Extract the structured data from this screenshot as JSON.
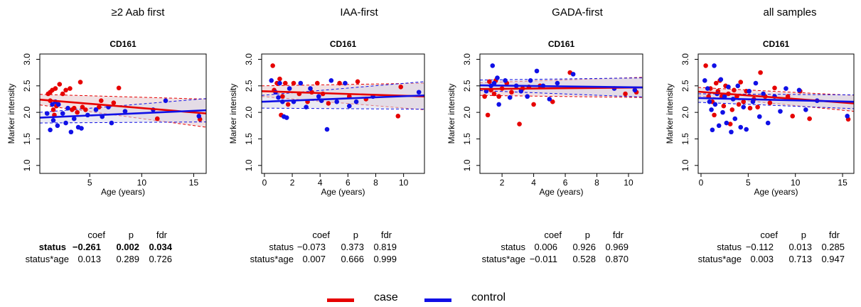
{
  "colors": {
    "case": "#e60000",
    "control": "#1010e6",
    "band_case": "#e8c8cc",
    "band_control": "#d8d8ea"
  },
  "legend": [
    {
      "label": "case",
      "color": "#e60000"
    },
    {
      "label": "control",
      "color": "#1010e6"
    }
  ],
  "stats_headers": {
    "coef": "coef",
    "p": "p",
    "fdr": "fdr"
  },
  "panels": [
    {
      "title": "≥2 Aab first",
      "stats": [
        {
          "term": "status",
          "coef": "−0.261",
          "p": "0.002",
          "fdr": "0.034",
          "bold": true
        },
        {
          "term": "status*age",
          "coef": "0.013",
          "p": "0.289",
          "fdr": "0.726",
          "bold": false
        }
      ]
    },
    {
      "title": "IAA-first",
      "stats": [
        {
          "term": "status",
          "coef": "−0.073",
          "p": "0.373",
          "fdr": "0.819",
          "bold": false
        },
        {
          "term": "status*age",
          "coef": "0.007",
          "p": "0.666",
          "fdr": "0.999",
          "bold": false
        }
      ]
    },
    {
      "title": "GADA-first",
      "stats": [
        {
          "term": "status",
          "coef": "0.006",
          "p": "0.926",
          "fdr": "0.969",
          "bold": false
        },
        {
          "term": "status*age",
          "coef": "−0.011",
          "p": "0.528",
          "fdr": "0.870",
          "bold": false
        }
      ]
    },
    {
      "title": "all samples",
      "stats": [
        {
          "term": "status",
          "coef": "−0.112",
          "p": "0.013",
          "fdr": "0.285",
          "bold": false
        },
        {
          "term": "status*age",
          "coef": "0.003",
          "p": "0.713",
          "fdr": "0.947",
          "bold": false
        }
      ]
    }
  ],
  "chart_data": [
    {
      "type": "scatter",
      "title": "CD161",
      "xlabel": "Age (years)",
      "ylabel": "Marker intensity",
      "xlim": [
        0.2,
        16.2
      ],
      "ylim": [
        0.85,
        3.1
      ],
      "xticks": [
        5,
        10,
        15
      ],
      "yticks": [
        1.0,
        1.5,
        2.0,
        2.5,
        3.0
      ],
      "yticklabels": [
        "1.0",
        "1.5",
        "2.0",
        "2.5",
        "3.0"
      ],
      "grid": false,
      "series": [
        {
          "name": "case",
          "points": [
            [
              1,
              2.35
            ],
            [
              1.2,
              2.38
            ],
            [
              1.4,
              2.42
            ],
            [
              1.2,
              2.22
            ],
            [
              1.5,
              2.05
            ],
            [
              1.6,
              1.95
            ],
            [
              1.7,
              2.45
            ],
            [
              1.8,
              2.12
            ],
            [
              2.1,
              2.53
            ],
            [
              2.4,
              2.35
            ],
            [
              2.7,
              2.42
            ],
            [
              3.1,
              2.45
            ],
            [
              3.3,
              2.05
            ],
            [
              3.5,
              2.08
            ],
            [
              3.8,
              2.0
            ],
            [
              4.1,
              2.57
            ],
            [
              4.3,
              2.1
            ],
            [
              4.6,
              2.05
            ],
            [
              5.9,
              2.1
            ],
            [
              6.1,
              2.22
            ],
            [
              7.3,
              2.18
            ],
            [
              7.8,
              2.46
            ],
            [
              11.5,
              1.88
            ],
            [
              15.6,
              1.87
            ]
          ],
          "fit": {
            "y_start": 2.24,
            "y_end": 1.98
          },
          "band": {
            "start": [
              2.14,
              2.34
            ],
            "end": [
              1.72,
              2.25
            ]
          }
        },
        {
          "name": "control",
          "points": [
            [
              0.9,
              1.98
            ],
            [
              1.2,
              1.67
            ],
            [
              1.4,
              2.15
            ],
            [
              1.5,
              1.85
            ],
            [
              1.7,
              2.2
            ],
            [
              1.9,
              1.75
            ],
            [
              2,
              2.15
            ],
            [
              2.4,
              1.98
            ],
            [
              2.7,
              1.8
            ],
            [
              2.9,
              2.08
            ],
            [
              3.2,
              1.63
            ],
            [
              3.5,
              1.88
            ],
            [
              3.9,
              1.72
            ],
            [
              4.2,
              1.7
            ],
            [
              4.8,
              1.95
            ],
            [
              5.6,
              2.05
            ],
            [
              6.2,
              1.92
            ],
            [
              6.8,
              2.1
            ],
            [
              7.1,
              1.8
            ],
            [
              8.4,
              2.02
            ],
            [
              11.1,
              2.05
            ],
            [
              12.3,
              2.22
            ],
            [
              15.5,
              1.93
            ]
          ],
          "fit": {
            "y_start": 1.9,
            "y_end": 2.04
          },
          "band": {
            "start": [
              1.8,
              2.0
            ],
            "end": [
              1.82,
              2.26
            ]
          }
        }
      ]
    },
    {
      "type": "scatter",
      "title": "CD161",
      "xlabel": "Age (years)",
      "ylabel": "Marker intensity",
      "xlim": [
        -0.2,
        11.5
      ],
      "ylim": [
        0.85,
        3.1
      ],
      "xticks": [
        0,
        2,
        4,
        6,
        8,
        10
      ],
      "yticks": [
        1.0,
        1.5,
        2.0,
        2.5,
        3.0
      ],
      "yticklabels": [
        "1.0",
        "1.5",
        "2.0",
        "2.5",
        "3.0"
      ],
      "grid": false,
      "series": [
        {
          "name": "case",
          "points": [
            [
              0.6,
              2.88
            ],
            [
              0.7,
              2.42
            ],
            [
              0.9,
              2.55
            ],
            [
              1.1,
              2.63
            ],
            [
              1.2,
              1.95
            ],
            [
              1.3,
              2.3
            ],
            [
              1.5,
              2.55
            ],
            [
              1.7,
              2.15
            ],
            [
              2.1,
              2.55
            ],
            [
              2.5,
              2.35
            ],
            [
              3.1,
              2.2
            ],
            [
              3.4,
              2.38
            ],
            [
              3.8,
              2.55
            ],
            [
              4.2,
              2.35
            ],
            [
              4.6,
              2.17
            ],
            [
              5.4,
              2.55
            ],
            [
              6.1,
              2.3
            ],
            [
              6.7,
              2.58
            ],
            [
              7.3,
              2.25
            ],
            [
              9.6,
              1.93
            ],
            [
              9.8,
              2.48
            ]
          ],
          "fit": {
            "y_start": 2.4,
            "y_end": 2.3
          },
          "band": {
            "start": [
              2.3,
              2.5
            ],
            "end": [
              2.05,
              2.55
            ]
          }
        },
        {
          "name": "control",
          "points": [
            [
              0.5,
              2.6
            ],
            [
              0.8,
              2.38
            ],
            [
              1.0,
              2.28
            ],
            [
              1.1,
              2.55
            ],
            [
              1.3,
              2.2
            ],
            [
              1.4,
              1.92
            ],
            [
              1.6,
              1.9
            ],
            [
              1.8,
              2.45
            ],
            [
              2.1,
              2.2
            ],
            [
              2.6,
              2.55
            ],
            [
              3,
              2.1
            ],
            [
              3.3,
              2.45
            ],
            [
              3.9,
              2.3
            ],
            [
              4.1,
              2.22
            ],
            [
              4.5,
              1.68
            ],
            [
              4.8,
              2.6
            ],
            [
              5.2,
              2.2
            ],
            [
              5.8,
              2.55
            ],
            [
              6.1,
              2.12
            ],
            [
              6.6,
              2.2
            ],
            [
              7.8,
              2.3
            ],
            [
              11.1,
              2.38
            ]
          ],
          "fit": {
            "y_start": 2.2,
            "y_end": 2.32
          },
          "band": {
            "start": [
              2.08,
              2.32
            ],
            "end": [
              2.06,
              2.58
            ]
          }
        }
      ]
    },
    {
      "type": "scatter",
      "title": "CD161",
      "xlabel": "Age (years)",
      "ylabel": "Marker intensity",
      "xlim": [
        0.6,
        10.9
      ],
      "ylim": [
        0.85,
        3.1
      ],
      "xticks": [
        2,
        4,
        6,
        8,
        10
      ],
      "yticks": [
        1.0,
        1.5,
        2.0,
        2.5,
        3.0
      ],
      "yticklabels": [
        "1.0",
        "1.5",
        "2.0",
        "2.5",
        "3.0"
      ],
      "grid": false,
      "series": [
        {
          "name": "case",
          "points": [
            [
              0.9,
              2.3
            ],
            [
              1.1,
              1.95
            ],
            [
              1.2,
              2.58
            ],
            [
              1.3,
              2.42
            ],
            [
              1.5,
              2.35
            ],
            [
              1.6,
              2.6
            ],
            [
              1.8,
              2.3
            ],
            [
              2,
              2.45
            ],
            [
              2.3,
              2.55
            ],
            [
              2.6,
              2.38
            ],
            [
              3.1,
              1.78
            ],
            [
              3.3,
              2.45
            ],
            [
              3.7,
              2.48
            ],
            [
              4,
              2.15
            ],
            [
              4.4,
              2.5
            ],
            [
              5.2,
              2.2
            ],
            [
              6.3,
              2.75
            ],
            [
              9.8,
              2.35
            ],
            [
              10.5,
              2.38
            ]
          ],
          "fit": {
            "y_start": 2.44,
            "y_end": 2.47
          },
          "band": {
            "start": [
              2.32,
              2.56
            ],
            "end": [
              2.28,
              2.66
            ]
          }
        },
        {
          "name": "control",
          "points": [
            [
              1,
              2.4
            ],
            [
              1.3,
              2.5
            ],
            [
              1.4,
              2.88
            ],
            [
              1.5,
              2.55
            ],
            [
              1.7,
              2.65
            ],
            [
              1.8,
              2.15
            ],
            [
              2.2,
              2.6
            ],
            [
              2.5,
              2.28
            ],
            [
              2.9,
              2.5
            ],
            [
              3.2,
              2.4
            ],
            [
              3.6,
              2.3
            ],
            [
              3.8,
              2.6
            ],
            [
              4.2,
              2.78
            ],
            [
              4.6,
              2.5
            ],
            [
              5,
              2.25
            ],
            [
              5.5,
              2.55
            ],
            [
              6.5,
              2.72
            ],
            [
              9.1,
              2.45
            ],
            [
              10.4,
              2.42
            ]
          ],
          "fit": {
            "y_start": 2.51,
            "y_end": 2.47
          },
          "band": {
            "start": [
              2.41,
              2.61
            ],
            "end": [
              2.29,
              2.65
            ]
          }
        }
      ]
    },
    {
      "type": "scatter",
      "title": "CD161",
      "xlabel": "Age (years)",
      "ylabel": "Marker intensity",
      "xlim": [
        -0.3,
        16.2
      ],
      "ylim": [
        0.85,
        3.1
      ],
      "xticks": [
        0,
        5,
        10,
        15
      ],
      "yticks": [
        1.0,
        1.5,
        2.0,
        2.5,
        3.0
      ],
      "yticklabels": [
        "1.0",
        "1.5",
        "2.0",
        "2.5",
        "3.0"
      ],
      "grid": false,
      "series": [
        {
          "name": "case",
          "points": [
            [
              0.5,
              2.88
            ],
            [
              0.8,
              2.3
            ],
            [
              1,
              2.45
            ],
            [
              1.2,
              2.2
            ],
            [
              1.4,
              1.95
            ],
            [
              1.6,
              2.55
            ],
            [
              1.8,
              2.4
            ],
            [
              2,
              2.6
            ],
            [
              2.2,
              2.3
            ],
            [
              2.4,
              2.12
            ],
            [
              2.6,
              2.5
            ],
            [
              2.9,
              2.35
            ],
            [
              3.1,
              1.78
            ],
            [
              3.3,
              2.05
            ],
            [
              3.5,
              2.42
            ],
            [
              3.8,
              2.3
            ],
            [
              4,
              2.15
            ],
            [
              4.2,
              2.57
            ],
            [
              4.5,
              2.2
            ],
            [
              4.8,
              2.4
            ],
            [
              5.2,
              2.08
            ],
            [
              5.6,
              2.25
            ],
            [
              6,
              2.1
            ],
            [
              6.3,
              2.75
            ],
            [
              6.8,
              2.3
            ],
            [
              7.3,
              2.18
            ],
            [
              7.8,
              2.46
            ],
            [
              9.2,
              2.3
            ],
            [
              9.7,
              1.93
            ],
            [
              10.5,
              2.4
            ],
            [
              11.5,
              1.88
            ],
            [
              15.6,
              1.87
            ]
          ],
          "fit": {
            "y_start": 2.39,
            "y_end": 2.17
          },
          "band": {
            "start": [
              2.31,
              2.47
            ],
            "end": [
              2.02,
              2.32
            ]
          }
        },
        {
          "name": "control",
          "points": [
            [
              0.4,
              2.6
            ],
            [
              0.7,
              2.45
            ],
            [
              0.9,
              2.2
            ],
            [
              1.1,
              2.05
            ],
            [
              1.2,
              1.67
            ],
            [
              1.4,
              2.88
            ],
            [
              1.5,
              2.15
            ],
            [
              1.7,
              2.35
            ],
            [
              1.9,
              1.75
            ],
            [
              2.1,
              2.62
            ],
            [
              2.3,
              2.0
            ],
            [
              2.5,
              2.3
            ],
            [
              2.7,
              1.8
            ],
            [
              2.9,
              2.48
            ],
            [
              3.2,
              1.63
            ],
            [
              3.4,
              2.25
            ],
            [
              3.6,
              1.88
            ],
            [
              3.9,
              2.5
            ],
            [
              4.2,
              1.72
            ],
            [
              4.5,
              2.1
            ],
            [
              4.8,
              1.68
            ],
            [
              5.1,
              2.4
            ],
            [
              5.5,
              2.2
            ],
            [
              5.8,
              2.55
            ],
            [
              6.2,
              1.92
            ],
            [
              6.6,
              2.35
            ],
            [
              7.1,
              1.8
            ],
            [
              7.8,
              2.3
            ],
            [
              8.4,
              2.02
            ],
            [
              9,
              2.45
            ],
            [
              10.4,
              2.42
            ],
            [
              11.1,
              2.05
            ],
            [
              12.3,
              2.22
            ],
            [
              15.5,
              1.93
            ]
          ],
          "fit": {
            "y_start": 2.27,
            "y_end": 2.2
          },
          "band": {
            "start": [
              2.19,
              2.35
            ],
            "end": [
              2.07,
              2.33
            ]
          }
        }
      ]
    }
  ]
}
